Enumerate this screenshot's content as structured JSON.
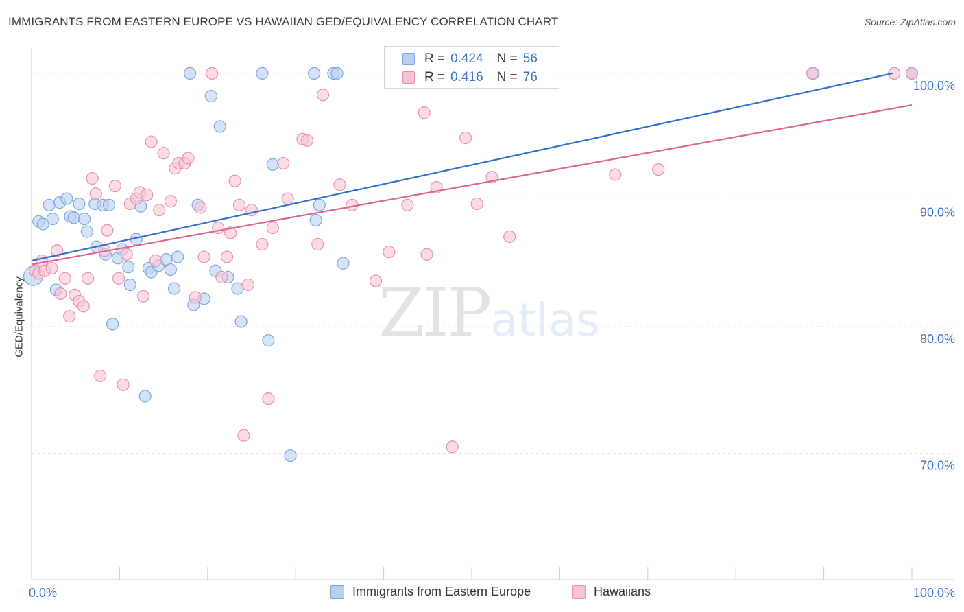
{
  "header": {
    "title": "IMMIGRANTS FROM EASTERN EUROPE VS HAWAIIAN GED/EQUIVALENCY CORRELATION CHART",
    "source": "Source: ZipAtlas.com"
  },
  "legend": {
    "series1": {
      "r_label": "R =",
      "r_value": "0.424",
      "n_label": "N =",
      "n_value": "56"
    },
    "series2": {
      "r_label": "R =",
      "r_value": "0.416",
      "n_label": "N =",
      "n_value": "76"
    }
  },
  "watermark": {
    "part1": "ZIP",
    "part2": "atlas"
  },
  "colors": {
    "blue_fill": "#b8d0f0",
    "blue_stroke": "#7fa6dd",
    "blue_line": "#2f6fcd",
    "pink_fill": "#f8c4d4",
    "pink_stroke": "#e890ae",
    "pink_line": "#e0648e",
    "tick_label": "#3a73c8",
    "grid": "#e3e3e3"
  },
  "chart_data": {
    "type": "scatter",
    "title": "IMMIGRANTS FROM EASTERN EUROPE VS HAWAIIAN GED/EQUIVALENCY CORRELATION CHART",
    "xlabel": "",
    "ylabel": "GED/Equivalency",
    "xlim": [
      0,
      100
    ],
    "ylim": [
      60,
      102
    ],
    "x_tick_labels": [
      "0.0%",
      "100.0%"
    ],
    "y_ticks": [
      70,
      80,
      90,
      100
    ],
    "y_tick_labels": [
      "70.0%",
      "80.0%",
      "90.0%",
      "100.0%"
    ],
    "grid": true,
    "legend_position": "top-center",
    "series": [
      {
        "name": "Immigrants from Eastern Europe",
        "color": "blue",
        "R": 0.424,
        "N": 56,
        "trendline": {
          "x": [
            0,
            97.8
          ],
          "y": [
            85.2,
            100.0
          ]
        },
        "points": [
          [
            0.2,
            84.0
          ],
          [
            0.8,
            88.3
          ],
          [
            1.3,
            88.1
          ],
          [
            2.0,
            89.6
          ],
          [
            2.4,
            88.5
          ],
          [
            2.8,
            82.9
          ],
          [
            3.2,
            89.8
          ],
          [
            4.0,
            90.1
          ],
          [
            4.4,
            88.7
          ],
          [
            4.8,
            88.6
          ],
          [
            5.4,
            89.7
          ],
          [
            6.0,
            88.5
          ],
          [
            6.3,
            87.5
          ],
          [
            7.2,
            89.7
          ],
          [
            7.4,
            86.3
          ],
          [
            8.1,
            89.6
          ],
          [
            8.4,
            85.7
          ],
          [
            8.8,
            89.6
          ],
          [
            9.2,
            80.2
          ],
          [
            9.8,
            85.4
          ],
          [
            10.3,
            86.1
          ],
          [
            11.0,
            84.7
          ],
          [
            11.2,
            83.3
          ],
          [
            11.9,
            86.9
          ],
          [
            12.4,
            89.5
          ],
          [
            12.9,
            74.5
          ],
          [
            13.3,
            84.6
          ],
          [
            13.6,
            84.3
          ],
          [
            14.4,
            84.8
          ],
          [
            15.3,
            85.3
          ],
          [
            15.8,
            84.5
          ],
          [
            16.2,
            83.0
          ],
          [
            16.6,
            85.5
          ],
          [
            18.0,
            100.0
          ],
          [
            18.4,
            81.7
          ],
          [
            18.9,
            89.6
          ],
          [
            19.6,
            82.2
          ],
          [
            20.4,
            98.2
          ],
          [
            20.9,
            84.4
          ],
          [
            21.4,
            95.8
          ],
          [
            22.3,
            83.9
          ],
          [
            23.4,
            83.0
          ],
          [
            23.8,
            80.4
          ],
          [
            26.2,
            100.0
          ],
          [
            26.9,
            78.9
          ],
          [
            27.4,
            92.8
          ],
          [
            29.4,
            69.8
          ],
          [
            32.1,
            100.0
          ],
          [
            32.3,
            88.4
          ],
          [
            32.7,
            89.6
          ],
          [
            34.3,
            100.0
          ],
          [
            34.7,
            100.0
          ],
          [
            35.4,
            85.0
          ],
          [
            88.8,
            100.0
          ],
          [
            100.0,
            100.0
          ],
          [
            100.0,
            100.0
          ]
        ]
      },
      {
        "name": "Hawaiians",
        "color": "pink",
        "R": 0.416,
        "N": 76,
        "trendline": {
          "x": [
            0,
            100
          ],
          "y": [
            84.9,
            97.5
          ]
        },
        "points": [
          [
            0.4,
            84.4
          ],
          [
            0.8,
            84.2
          ],
          [
            1.2,
            85.2
          ],
          [
            1.5,
            84.4
          ],
          [
            2.3,
            84.6
          ],
          [
            2.9,
            86.0
          ],
          [
            3.3,
            82.6
          ],
          [
            3.8,
            83.8
          ],
          [
            4.3,
            80.8
          ],
          [
            4.9,
            82.5
          ],
          [
            5.4,
            82.0
          ],
          [
            5.9,
            81.6
          ],
          [
            6.4,
            83.8
          ],
          [
            6.9,
            91.7
          ],
          [
            7.3,
            90.5
          ],
          [
            7.8,
            76.1
          ],
          [
            8.3,
            86.0
          ],
          [
            8.6,
            87.6
          ],
          [
            9.5,
            91.1
          ],
          [
            9.9,
            83.8
          ],
          [
            10.4,
            75.4
          ],
          [
            10.8,
            85.7
          ],
          [
            11.2,
            89.7
          ],
          [
            11.9,
            90.1
          ],
          [
            12.3,
            90.6
          ],
          [
            12.7,
            82.4
          ],
          [
            13.1,
            90.4
          ],
          [
            13.6,
            94.6
          ],
          [
            14.1,
            85.2
          ],
          [
            14.5,
            89.2
          ],
          [
            15.0,
            93.7
          ],
          [
            15.8,
            89.9
          ],
          [
            16.3,
            92.5
          ],
          [
            16.7,
            92.9
          ],
          [
            17.4,
            92.9
          ],
          [
            17.8,
            93.3
          ],
          [
            18.6,
            82.3
          ],
          [
            19.2,
            89.4
          ],
          [
            19.6,
            85.5
          ],
          [
            20.5,
            100.0
          ],
          [
            21.2,
            87.8
          ],
          [
            21.6,
            83.9
          ],
          [
            22.2,
            85.5
          ],
          [
            22.6,
            87.4
          ],
          [
            23.1,
            91.5
          ],
          [
            23.6,
            89.6
          ],
          [
            24.1,
            71.4
          ],
          [
            24.6,
            83.3
          ],
          [
            25.0,
            89.2
          ],
          [
            26.2,
            86.5
          ],
          [
            26.9,
            74.3
          ],
          [
            27.4,
            87.8
          ],
          [
            28.6,
            92.9
          ],
          [
            29.1,
            90.1
          ],
          [
            30.8,
            94.8
          ],
          [
            31.3,
            94.7
          ],
          [
            32.5,
            86.5
          ],
          [
            33.1,
            98.3
          ],
          [
            35.0,
            91.2
          ],
          [
            36.4,
            89.6
          ],
          [
            39.1,
            83.6
          ],
          [
            40.6,
            85.9
          ],
          [
            42.7,
            89.6
          ],
          [
            44.6,
            96.9
          ],
          [
            44.9,
            85.7
          ],
          [
            46.0,
            91.0
          ],
          [
            47.8,
            70.5
          ],
          [
            49.3,
            94.9
          ],
          [
            50.6,
            89.7
          ],
          [
            52.3,
            91.8
          ],
          [
            54.3,
            87.1
          ],
          [
            66.3,
            92.0
          ],
          [
            71.2,
            92.4
          ],
          [
            88.7,
            100.0
          ],
          [
            98.0,
            100.0
          ],
          [
            100.0,
            100.0
          ]
        ]
      }
    ],
    "legend_entries": [
      "Immigrants from Eastern Europe",
      "Hawaiians"
    ]
  }
}
